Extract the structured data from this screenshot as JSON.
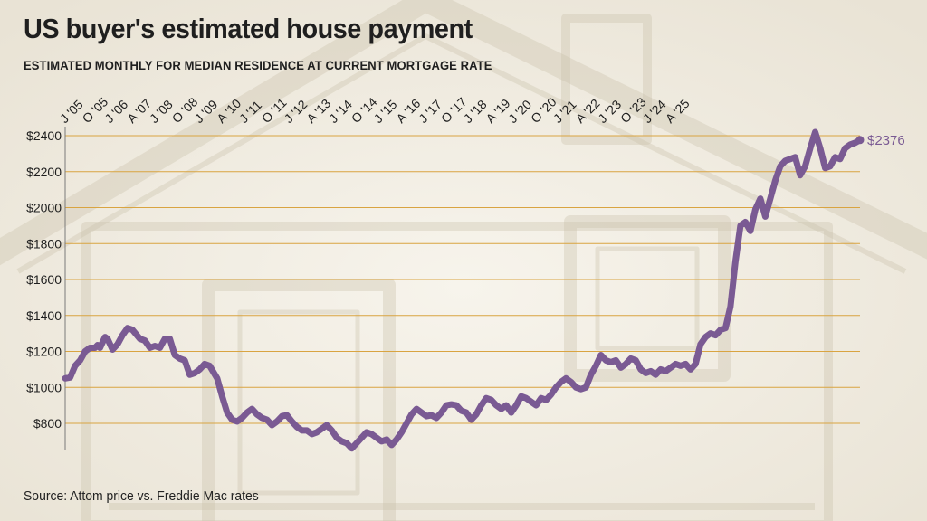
{
  "header": {
    "title": "US buyer's estimated house payment",
    "subtitle": "ESTIMATED MONTHLY FOR MEDIAN RESIDENCE AT CURRENT MORTGAGE RATE"
  },
  "footer": {
    "source": "Source: Attom price vs. Freddie Mac rates"
  },
  "colors": {
    "line": "#7a5a93",
    "grid": "#d9a441",
    "background": "#f2eee4",
    "end_label": "#7a5a93"
  },
  "chart_data": {
    "type": "line",
    "title": "US buyer's estimated house payment",
    "subtitle": "ESTIMATED MONTHLY FOR MEDIAN RESIDENCE AT CURRENT MORTGAGE RATE",
    "xlabel": "",
    "ylabel": "",
    "ylim": [
      700,
      2400
    ],
    "yticks": [
      800,
      1000,
      1200,
      1400,
      1600,
      1800,
      2000,
      2200,
      2400
    ],
    "ytick_labels": [
      "$800",
      "$1000",
      "$1200",
      "$1400",
      "$1600",
      "$1800",
      "$2000",
      "$2200",
      "$2400"
    ],
    "grid": true,
    "xticks": [
      {
        "date": "2005-01",
        "label": "J '05"
      },
      {
        "date": "2005-10",
        "label": "O '05"
      },
      {
        "date": "2006-07",
        "label": "J '06"
      },
      {
        "date": "2007-04",
        "label": "A '07"
      },
      {
        "date": "2008-01",
        "label": "J '08"
      },
      {
        "date": "2008-10",
        "label": "O '08"
      },
      {
        "date": "2009-07",
        "label": "J '09"
      },
      {
        "date": "2010-04",
        "label": "A '10"
      },
      {
        "date": "2011-01",
        "label": "J '11"
      },
      {
        "date": "2011-10",
        "label": "O '11"
      },
      {
        "date": "2012-07",
        "label": "J '12"
      },
      {
        "date": "2013-04",
        "label": "A '13"
      },
      {
        "date": "2014-01",
        "label": "J '14"
      },
      {
        "date": "2014-10",
        "label": "O '14"
      },
      {
        "date": "2015-07",
        "label": "J '15"
      },
      {
        "date": "2016-04",
        "label": "A '16"
      },
      {
        "date": "2017-01",
        "label": "J '17"
      },
      {
        "date": "2017-10",
        "label": "O '17"
      },
      {
        "date": "2018-07",
        "label": "J '18"
      },
      {
        "date": "2019-04",
        "label": "A '19"
      },
      {
        "date": "2020-01",
        "label": "J '20"
      },
      {
        "date": "2020-10",
        "label": "O '20"
      },
      {
        "date": "2021-07",
        "label": "J '21"
      },
      {
        "date": "2022-04",
        "label": "A '22"
      },
      {
        "date": "2023-01",
        "label": "J '23"
      },
      {
        "date": "2023-10",
        "label": "O '23"
      },
      {
        "date": "2024-07",
        "label": "J '24"
      },
      {
        "date": "2025-04",
        "label": "A '25"
      }
    ],
    "series": [
      {
        "points": [
          [
            "2005-01",
            1050
          ],
          [
            "2005-03",
            1055
          ],
          [
            "2005-05",
            1120
          ],
          [
            "2005-07",
            1150
          ],
          [
            "2005-09",
            1200
          ],
          [
            "2005-11",
            1220
          ],
          [
            "2006-01",
            1220
          ],
          [
            "2006-02",
            1235
          ],
          [
            "2006-03",
            1220
          ],
          [
            "2006-05",
            1280
          ],
          [
            "2006-06",
            1270
          ],
          [
            "2006-08",
            1210
          ],
          [
            "2006-10",
            1240
          ],
          [
            "2006-12",
            1290
          ],
          [
            "2007-02",
            1330
          ],
          [
            "2007-04",
            1320
          ],
          [
            "2007-07",
            1270
          ],
          [
            "2007-09",
            1260
          ],
          [
            "2007-11",
            1220
          ],
          [
            "2008-01",
            1230
          ],
          [
            "2008-03",
            1220
          ],
          [
            "2008-05",
            1270
          ],
          [
            "2008-07",
            1270
          ],
          [
            "2008-09",
            1180
          ],
          [
            "2008-11",
            1160
          ],
          [
            "2009-01",
            1150
          ],
          [
            "2009-03",
            1070
          ],
          [
            "2009-05",
            1080
          ],
          [
            "2009-07",
            1100
          ],
          [
            "2009-09",
            1130
          ],
          [
            "2009-11",
            1120
          ],
          [
            "2010-02",
            1050
          ],
          [
            "2010-04",
            950
          ],
          [
            "2010-06",
            860
          ],
          [
            "2010-08",
            820
          ],
          [
            "2010-10",
            810
          ],
          [
            "2010-12",
            830
          ],
          [
            "2011-02",
            860
          ],
          [
            "2011-04",
            880
          ],
          [
            "2011-06",
            850
          ],
          [
            "2011-08",
            830
          ],
          [
            "2011-10",
            820
          ],
          [
            "2011-12",
            790
          ],
          [
            "2012-02",
            810
          ],
          [
            "2012-04",
            840
          ],
          [
            "2012-06",
            845
          ],
          [
            "2012-08",
            810
          ],
          [
            "2012-10",
            780
          ],
          [
            "2012-12",
            760
          ],
          [
            "2013-02",
            760
          ],
          [
            "2013-04",
            740
          ],
          [
            "2013-06",
            750
          ],
          [
            "2013-08",
            770
          ],
          [
            "2013-10",
            790
          ],
          [
            "2013-12",
            760
          ],
          [
            "2014-02",
            720
          ],
          [
            "2014-04",
            700
          ],
          [
            "2014-06",
            690
          ],
          [
            "2014-08",
            660
          ],
          [
            "2014-10",
            690
          ],
          [
            "2014-12",
            720
          ],
          [
            "2015-02",
            750
          ],
          [
            "2015-04",
            740
          ],
          [
            "2015-06",
            720
          ],
          [
            "2015-08",
            700
          ],
          [
            "2015-10",
            710
          ],
          [
            "2015-12",
            680
          ],
          [
            "2016-02",
            710
          ],
          [
            "2016-04",
            750
          ],
          [
            "2016-06",
            800
          ],
          [
            "2016-08",
            850
          ],
          [
            "2016-10",
            880
          ],
          [
            "2016-12",
            860
          ],
          [
            "2017-02",
            840
          ],
          [
            "2017-04",
            845
          ],
          [
            "2017-06",
            830
          ],
          [
            "2017-08",
            860
          ],
          [
            "2017-10",
            900
          ],
          [
            "2017-12",
            905
          ],
          [
            "2018-02",
            900
          ],
          [
            "2018-04",
            870
          ],
          [
            "2018-06",
            860
          ],
          [
            "2018-08",
            820
          ],
          [
            "2018-10",
            850
          ],
          [
            "2018-12",
            900
          ],
          [
            "2019-02",
            940
          ],
          [
            "2019-04",
            930
          ],
          [
            "2019-06",
            900
          ],
          [
            "2019-08",
            880
          ],
          [
            "2019-10",
            900
          ],
          [
            "2019-12",
            860
          ],
          [
            "2020-02",
            900
          ],
          [
            "2020-04",
            950
          ],
          [
            "2020-06",
            940
          ],
          [
            "2020-08",
            920
          ],
          [
            "2020-10",
            900
          ],
          [
            "2020-12",
            940
          ],
          [
            "2021-02",
            930
          ],
          [
            "2021-04",
            960
          ],
          [
            "2021-06",
            1000
          ],
          [
            "2021-08",
            1030
          ],
          [
            "2021-10",
            1050
          ],
          [
            "2021-12",
            1030
          ],
          [
            "2022-02",
            1000
          ],
          [
            "2022-04",
            990
          ],
          [
            "2022-06",
            1000
          ],
          [
            "2022-08",
            1070
          ],
          [
            "2022-10",
            1120
          ],
          [
            "2022-12",
            1180
          ],
          [
            "2023-02",
            1150
          ],
          [
            "2023-04",
            1140
          ],
          [
            "2023-06",
            1150
          ],
          [
            "2023-08",
            1110
          ],
          [
            "2023-10",
            1130
          ],
          [
            "2023-12",
            1160
          ],
          [
            "2024-02",
            1150
          ],
          [
            "2024-04",
            1100
          ],
          [
            "2024-06",
            1080
          ],
          [
            "2024-08",
            1090
          ],
          [
            "2024-10",
            1070
          ],
          [
            "2024-12",
            1100
          ],
          [
            "2025-02",
            1090
          ],
          [
            "2025-04",
            1110
          ],
          [
            "2025-06",
            1130
          ],
          [
            "2025-08",
            1120
          ],
          [
            "2025-10",
            1130
          ],
          [
            "2025-12",
            1100
          ],
          [
            "2026-02",
            1130
          ],
          [
            "2026-04",
            1240
          ],
          [
            "2026-06",
            1280
          ],
          [
            "2026-08",
            1300
          ],
          [
            "2026-10",
            1290
          ],
          [
            "2026-12",
            1320
          ],
          [
            "2027-02",
            1330
          ],
          [
            "2027-04",
            1450
          ],
          [
            "2027-06",
            1700
          ],
          [
            "2027-08",
            1900
          ],
          [
            "2027-10",
            1920
          ],
          [
            "2027-12",
            1870
          ],
          [
            "2028-02",
            1990
          ],
          [
            "2028-04",
            2050
          ],
          [
            "2028-06",
            1950
          ],
          [
            "2028-08",
            2050
          ],
          [
            "2028-10",
            2150
          ],
          [
            "2028-12",
            2230
          ],
          [
            "2029-02",
            2260
          ],
          [
            "2029-04",
            2270
          ],
          [
            "2029-06",
            2280
          ],
          [
            "2029-08",
            2180
          ],
          [
            "2029-10",
            2230
          ],
          [
            "2029-12",
            2330
          ],
          [
            "2030-02",
            2420
          ],
          [
            "2030-04",
            2330
          ],
          [
            "2030-06",
            2220
          ],
          [
            "2030-08",
            2230
          ],
          [
            "2030-10",
            2280
          ],
          [
            "2030-12",
            2270
          ],
          [
            "2031-02",
            2330
          ],
          [
            "2031-04",
            2350
          ],
          [
            "2031-06",
            2360
          ],
          [
            "2031-08",
            2376
          ]
        ]
      }
    ],
    "end_label": "$2376"
  }
}
